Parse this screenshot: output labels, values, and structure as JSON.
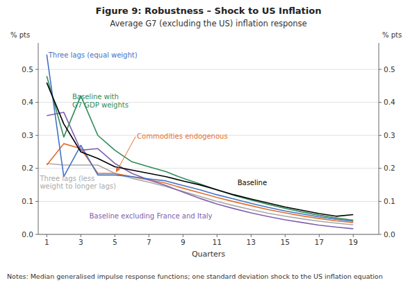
{
  "chart_data": {
    "type": "line",
    "title": "Figure 9: Robustness – Shock to US Inflation",
    "subtitle": "Average G7 (excluding the US) inflation response",
    "xlabel": "Quarters",
    "ylabel": "% pts",
    "y2label": "% pts",
    "notes": "Notes:\tMedian generalised impulse response functions; one standard deviation shock to the US inflation equation",
    "grid": true,
    "xlim": [
      0.5,
      20.5
    ],
    "xticks": [
      1,
      3,
      5,
      7,
      9,
      11,
      13,
      15,
      17,
      19
    ],
    "ylim": [
      0.0,
      0.58
    ],
    "yticks": [
      {
        "value": 0.0,
        "label": "0.0"
      },
      0.1,
      0.2,
      0.3,
      0.4,
      0.5
    ],
    "y2lim": [
      0.0,
      0.58
    ],
    "y2ticks": [
      {
        "value": 0.0,
        "label": "0.0"
      },
      0.1,
      0.2,
      0.3,
      0.4,
      0.5
    ],
    "x": [
      1,
      2,
      3,
      4,
      5,
      6,
      7,
      8,
      9,
      10,
      11,
      12,
      13,
      14,
      15,
      16,
      17,
      18,
      19
    ],
    "series": [
      {
        "name": "Three lags (less\nweight to longer lags)",
        "color": "#A9A9A9",
        "values": [
          0.215,
          0.21,
          0.21,
          0.21,
          0.185,
          0.17,
          0.158,
          0.145,
          0.13,
          0.115,
          0.1,
          0.087,
          0.075,
          0.064,
          0.055,
          0.047,
          0.04,
          0.034,
          0.029
        ]
      },
      {
        "name": "Commodities endogenous",
        "color": "#E07030",
        "values": [
          0.21,
          0.275,
          0.26,
          0.185,
          0.185,
          0.175,
          0.165,
          0.155,
          0.14,
          0.126,
          0.112,
          0.099,
          0.087,
          0.075,
          0.065,
          0.056,
          0.048,
          0.041,
          0.036
        ]
      },
      {
        "name": "Baseline excluding France and Italy",
        "color": "#8060B0",
        "values": [
          0.36,
          0.37,
          0.255,
          0.26,
          0.215,
          0.185,
          0.165,
          0.148,
          0.128,
          0.109,
          0.092,
          0.078,
          0.065,
          0.054,
          0.044,
          0.036,
          0.028,
          0.022,
          0.017
        ]
      },
      {
        "name": "Three lags (equal weight)",
        "color": "#4472C4",
        "values": [
          0.545,
          0.175,
          0.27,
          0.18,
          0.18,
          0.175,
          0.168,
          0.162,
          0.148,
          0.135,
          0.12,
          0.107,
          0.094,
          0.082,
          0.071,
          0.062,
          0.053,
          0.046,
          0.04
        ]
      },
      {
        "name": "Baseline with\nG7 GDP weights",
        "color": "#2E8B57",
        "values": [
          0.48,
          0.295,
          0.42,
          0.3,
          0.255,
          0.22,
          0.205,
          0.19,
          0.17,
          0.153,
          0.135,
          0.118,
          0.104,
          0.091,
          0.079,
          0.068,
          0.058,
          0.05,
          0.043
        ]
      },
      {
        "name": "Baseline",
        "color": "#000000",
        "values": [
          0.46,
          0.335,
          0.25,
          0.23,
          0.205,
          0.195,
          0.185,
          0.175,
          0.162,
          0.15,
          0.135,
          0.12,
          0.107,
          0.095,
          0.083,
          0.073,
          0.063,
          0.055,
          0.06
        ]
      }
    ]
  }
}
